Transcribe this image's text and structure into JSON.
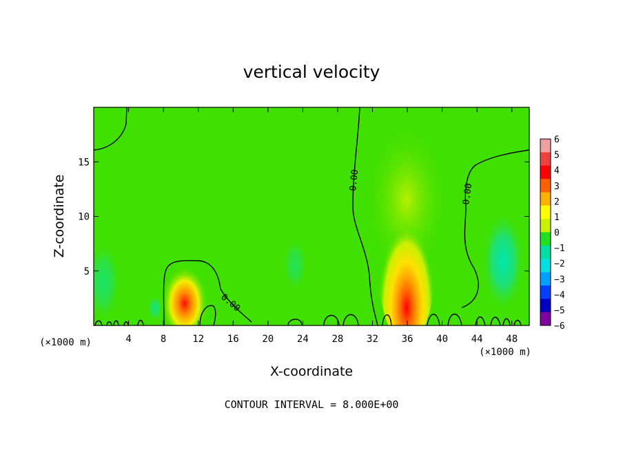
{
  "chart_data": {
    "type": "heatmap",
    "title": "vertical velocity",
    "xlabel": "X-coordinate",
    "ylabel": "Z-coordinate",
    "x_unit_left": "(×1000 m)",
    "x_unit_right": "(×1000 m)",
    "xlim": [
      0,
      50
    ],
    "ylim": [
      0,
      20
    ],
    "xticks": [
      4,
      8,
      12,
      16,
      20,
      24,
      28,
      32,
      36,
      40,
      44,
      48
    ],
    "yticks": [
      5,
      10,
      15
    ],
    "colorbar": {
      "levels": [
        6,
        5,
        4,
        3,
        2,
        1,
        0,
        -1,
        -2,
        -3,
        -4,
        -5,
        -6
      ],
      "colors": [
        "#f0a0a0",
        "#f04040",
        "#ff0000",
        "#ff6000",
        "#ffb000",
        "#ffff00",
        "#c8f000",
        "#20e020",
        "#00e0a0",
        "#00e0e0",
        "#00a0ff",
        "#0040ff",
        "#0000c0",
        "#8000a0"
      ]
    },
    "contour_labels": [
      "0.00",
      "0.00",
      "0.00"
    ],
    "features": [
      {
        "kind": "updraft",
        "x": 36,
        "z": 3,
        "peak": 5.5
      },
      {
        "kind": "updraft",
        "x": 10.3,
        "z": 1.8,
        "peak": 4.5
      },
      {
        "kind": "downdraft",
        "x": 46,
        "z": 5,
        "peak": -2
      }
    ],
    "footer": "CONTOUR INTERVAL = 8.000E+00"
  }
}
